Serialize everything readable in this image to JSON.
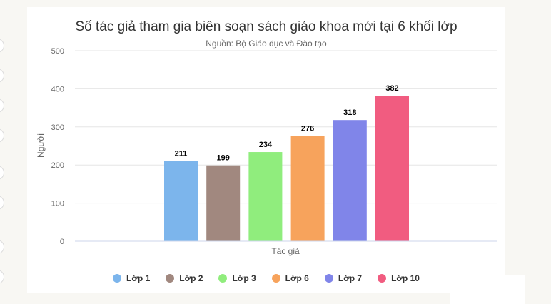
{
  "chart_data": {
    "type": "bar",
    "title": "Số tác giả tham gia biên soạn sách giáo khoa mới tại 6 khối lớp",
    "subtitle": "Nguồn: Bộ Giáo dục và Đào tạo",
    "xlabel": "Tác giả",
    "ylabel": "Người",
    "ylim": [
      0,
      500
    ],
    "yticks": [
      "0",
      "100",
      "200",
      "300",
      "400",
      "500"
    ],
    "grid": true,
    "legend_position": "bottom",
    "series": [
      {
        "name": "Lớp 1",
        "value": 211,
        "label": "211",
        "color": "#7cb5ec"
      },
      {
        "name": "Lớp 2",
        "value": 199,
        "label": "199",
        "color": "#a1887f"
      },
      {
        "name": "Lớp 3",
        "value": 234,
        "label": "234",
        "color": "#90ed7d"
      },
      {
        "name": "Lớp 6",
        "value": 276,
        "label": "276",
        "color": "#f7a35c"
      },
      {
        "name": "Lớp 7",
        "value": 318,
        "label": "318",
        "color": "#8085e9"
      },
      {
        "name": "Lớp 10",
        "value": 382,
        "label": "382",
        "color": "#f15c80"
      }
    ]
  }
}
